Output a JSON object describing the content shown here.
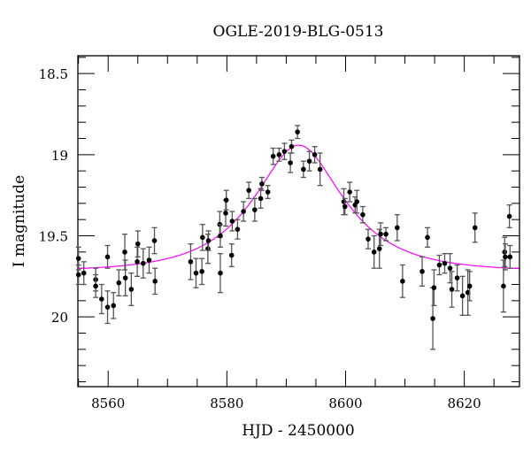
{
  "chart_data": {
    "type": "scatter",
    "title": "OGLE-2019-BLG-0513",
    "xlabel": "HJD - 2450000",
    "ylabel": "I magnitude",
    "xlim": [
      8554.9,
      8629.3
    ],
    "ylim": [
      20.43,
      18.39
    ],
    "y_inverted": true,
    "grid": false,
    "xticks": [
      8560,
      8580,
      8600,
      8620
    ],
    "xtick_labels": [
      "8560",
      "8580",
      "8600",
      "8620"
    ],
    "x_minor_step": 5,
    "yticks": [
      18.5,
      19,
      19.5,
      20
    ],
    "ytick_labels": [
      "18.5",
      "19",
      "19.5",
      "20"
    ],
    "y_minor_step": 0.1,
    "colors": {
      "points": "#000000",
      "errorbars": "#555555",
      "model": "#ff00ff"
    },
    "model": {
      "type": "paczynski",
      "t0": 8592.1,
      "u0": 0.54,
      "tE": 12.5,
      "baseline_mag": 19.72
    },
    "points": [
      [
        8555.0,
        19.64,
        0.07
      ],
      [
        8555.0,
        19.74,
        0.06
      ],
      [
        8555.9,
        19.73,
        0.07
      ],
      [
        8557.9,
        19.77,
        0.07
      ],
      [
        8557.9,
        19.81,
        0.07
      ],
      [
        8558.9,
        19.89,
        0.09
      ],
      [
        8559.9,
        19.63,
        0.07
      ],
      [
        8559.9,
        19.94,
        0.1
      ],
      [
        8560.9,
        19.93,
        0.08
      ],
      [
        8561.8,
        19.79,
        0.08
      ],
      [
        8562.8,
        19.6,
        0.11
      ],
      [
        8562.9,
        19.76,
        0.11
      ],
      [
        8563.9,
        19.83,
        0.1
      ],
      [
        8564.9,
        19.66,
        0.09
      ],
      [
        8565.0,
        19.55,
        0.08
      ],
      [
        8565.9,
        19.67,
        0.09
      ],
      [
        8566.9,
        19.65,
        0.08
      ],
      [
        8567.8,
        19.53,
        0.08
      ],
      [
        8567.9,
        19.78,
        0.08
      ],
      [
        8573.9,
        19.66,
        0.11
      ],
      [
        8574.8,
        19.73,
        0.09
      ],
      [
        8575.8,
        19.72,
        0.08
      ],
      [
        8575.9,
        19.51,
        0.08
      ],
      [
        8576.8,
        19.58,
        0.09
      ],
      [
        8576.9,
        19.53,
        0.06
      ],
      [
        8578.8,
        19.43,
        0.08
      ],
      [
        8578.9,
        19.5,
        0.07
      ],
      [
        8578.9,
        19.73,
        0.12
      ],
      [
        8579.8,
        19.36,
        0.08
      ],
      [
        8579.9,
        19.28,
        0.06
      ],
      [
        8580.8,
        19.62,
        0.07
      ],
      [
        8580.9,
        19.41,
        0.06
      ],
      [
        8581.8,
        19.46,
        0.06
      ],
      [
        8582.8,
        19.35,
        0.06
      ],
      [
        8583.7,
        19.22,
        0.05
      ],
      [
        8584.7,
        19.34,
        0.07
      ],
      [
        8585.7,
        19.27,
        0.06
      ],
      [
        8585.9,
        19.18,
        0.04
      ],
      [
        8586.9,
        19.23,
        0.04
      ],
      [
        8587.8,
        19.01,
        0.05
      ],
      [
        8588.8,
        19.0,
        0.04
      ],
      [
        8589.7,
        18.98,
        0.05
      ],
      [
        8590.7,
        19.05,
        0.06
      ],
      [
        8590.9,
        18.95,
        0.04
      ],
      [
        8591.9,
        18.86,
        0.04
      ],
      [
        8592.9,
        19.09,
        0.05
      ],
      [
        8593.9,
        19.04,
        0.06
      ],
      [
        8594.8,
        19.0,
        0.05
      ],
      [
        8595.7,
        19.09,
        0.1
      ],
      [
        8599.7,
        19.29,
        0.08
      ],
      [
        8599.9,
        19.32,
        0.05
      ],
      [
        8600.7,
        19.23,
        0.06
      ],
      [
        8601.6,
        19.31,
        0.05
      ],
      [
        8601.9,
        19.29,
        0.07
      ],
      [
        8602.9,
        19.37,
        0.05
      ],
      [
        8603.8,
        19.52,
        0.06
      ],
      [
        8604.8,
        19.6,
        0.1
      ],
      [
        8605.7,
        19.58,
        0.12
      ],
      [
        8605.9,
        19.49,
        0.07
      ],
      [
        8606.8,
        19.49,
        0.04
      ],
      [
        8608.7,
        19.45,
        0.08
      ],
      [
        8609.6,
        19.78,
        0.1
      ],
      [
        8612.9,
        19.72,
        0.09
      ],
      [
        8613.8,
        19.51,
        0.06
      ],
      [
        8614.7,
        20.01,
        0.19
      ],
      [
        8614.9,
        19.82,
        0.11
      ],
      [
        8615.8,
        19.68,
        0.06
      ],
      [
        8616.7,
        19.67,
        0.06
      ],
      [
        8617.6,
        19.7,
        0.09
      ],
      [
        8617.9,
        19.83,
        0.11
      ],
      [
        8618.8,
        19.76,
        0.08
      ],
      [
        8619.7,
        19.87,
        0.12
      ],
      [
        8620.6,
        19.85,
        0.14
      ],
      [
        8620.9,
        19.81,
        0.09
      ],
      [
        8621.8,
        19.45,
        0.09
      ],
      [
        8626.6,
        19.81,
        0.16
      ],
      [
        8626.8,
        19.6,
        0.09
      ],
      [
        8626.9,
        19.63,
        0.08
      ],
      [
        8627.6,
        19.38,
        0.07
      ],
      [
        8627.7,
        19.63,
        0.07
      ]
    ]
  }
}
